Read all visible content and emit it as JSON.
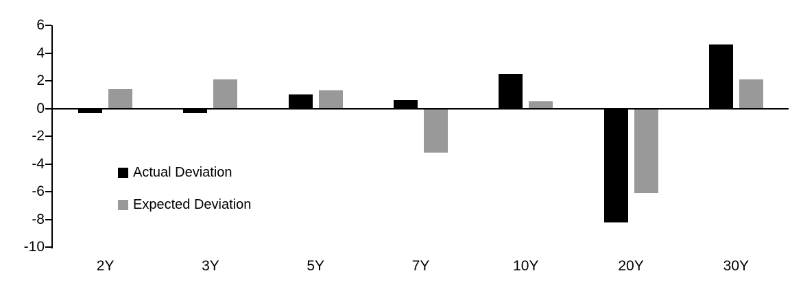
{
  "chart_data": {
    "type": "bar",
    "title": "",
    "xlabel": "",
    "ylabel": "",
    "categories": [
      "2Y",
      "3Y",
      "5Y",
      "7Y",
      "10Y",
      "20Y",
      "30Y"
    ],
    "series": [
      {
        "name": "Actual Deviation",
        "color": "#000000",
        "values": [
          -0.3,
          -0.3,
          1.0,
          0.6,
          2.5,
          -8.2,
          4.6
        ]
      },
      {
        "name": "Expected Deviation",
        "color": "#999999",
        "values": [
          1.4,
          2.1,
          1.3,
          -3.2,
          0.5,
          -6.1,
          2.1
        ]
      }
    ],
    "ylim": [
      -10,
      6
    ],
    "yticks": [
      6,
      4,
      2,
      0,
      -2,
      -4,
      -6,
      -8,
      -10
    ],
    "grid": false,
    "legend_position": "inside-left",
    "axis_color": "#000000",
    "background": "#ffffff"
  }
}
